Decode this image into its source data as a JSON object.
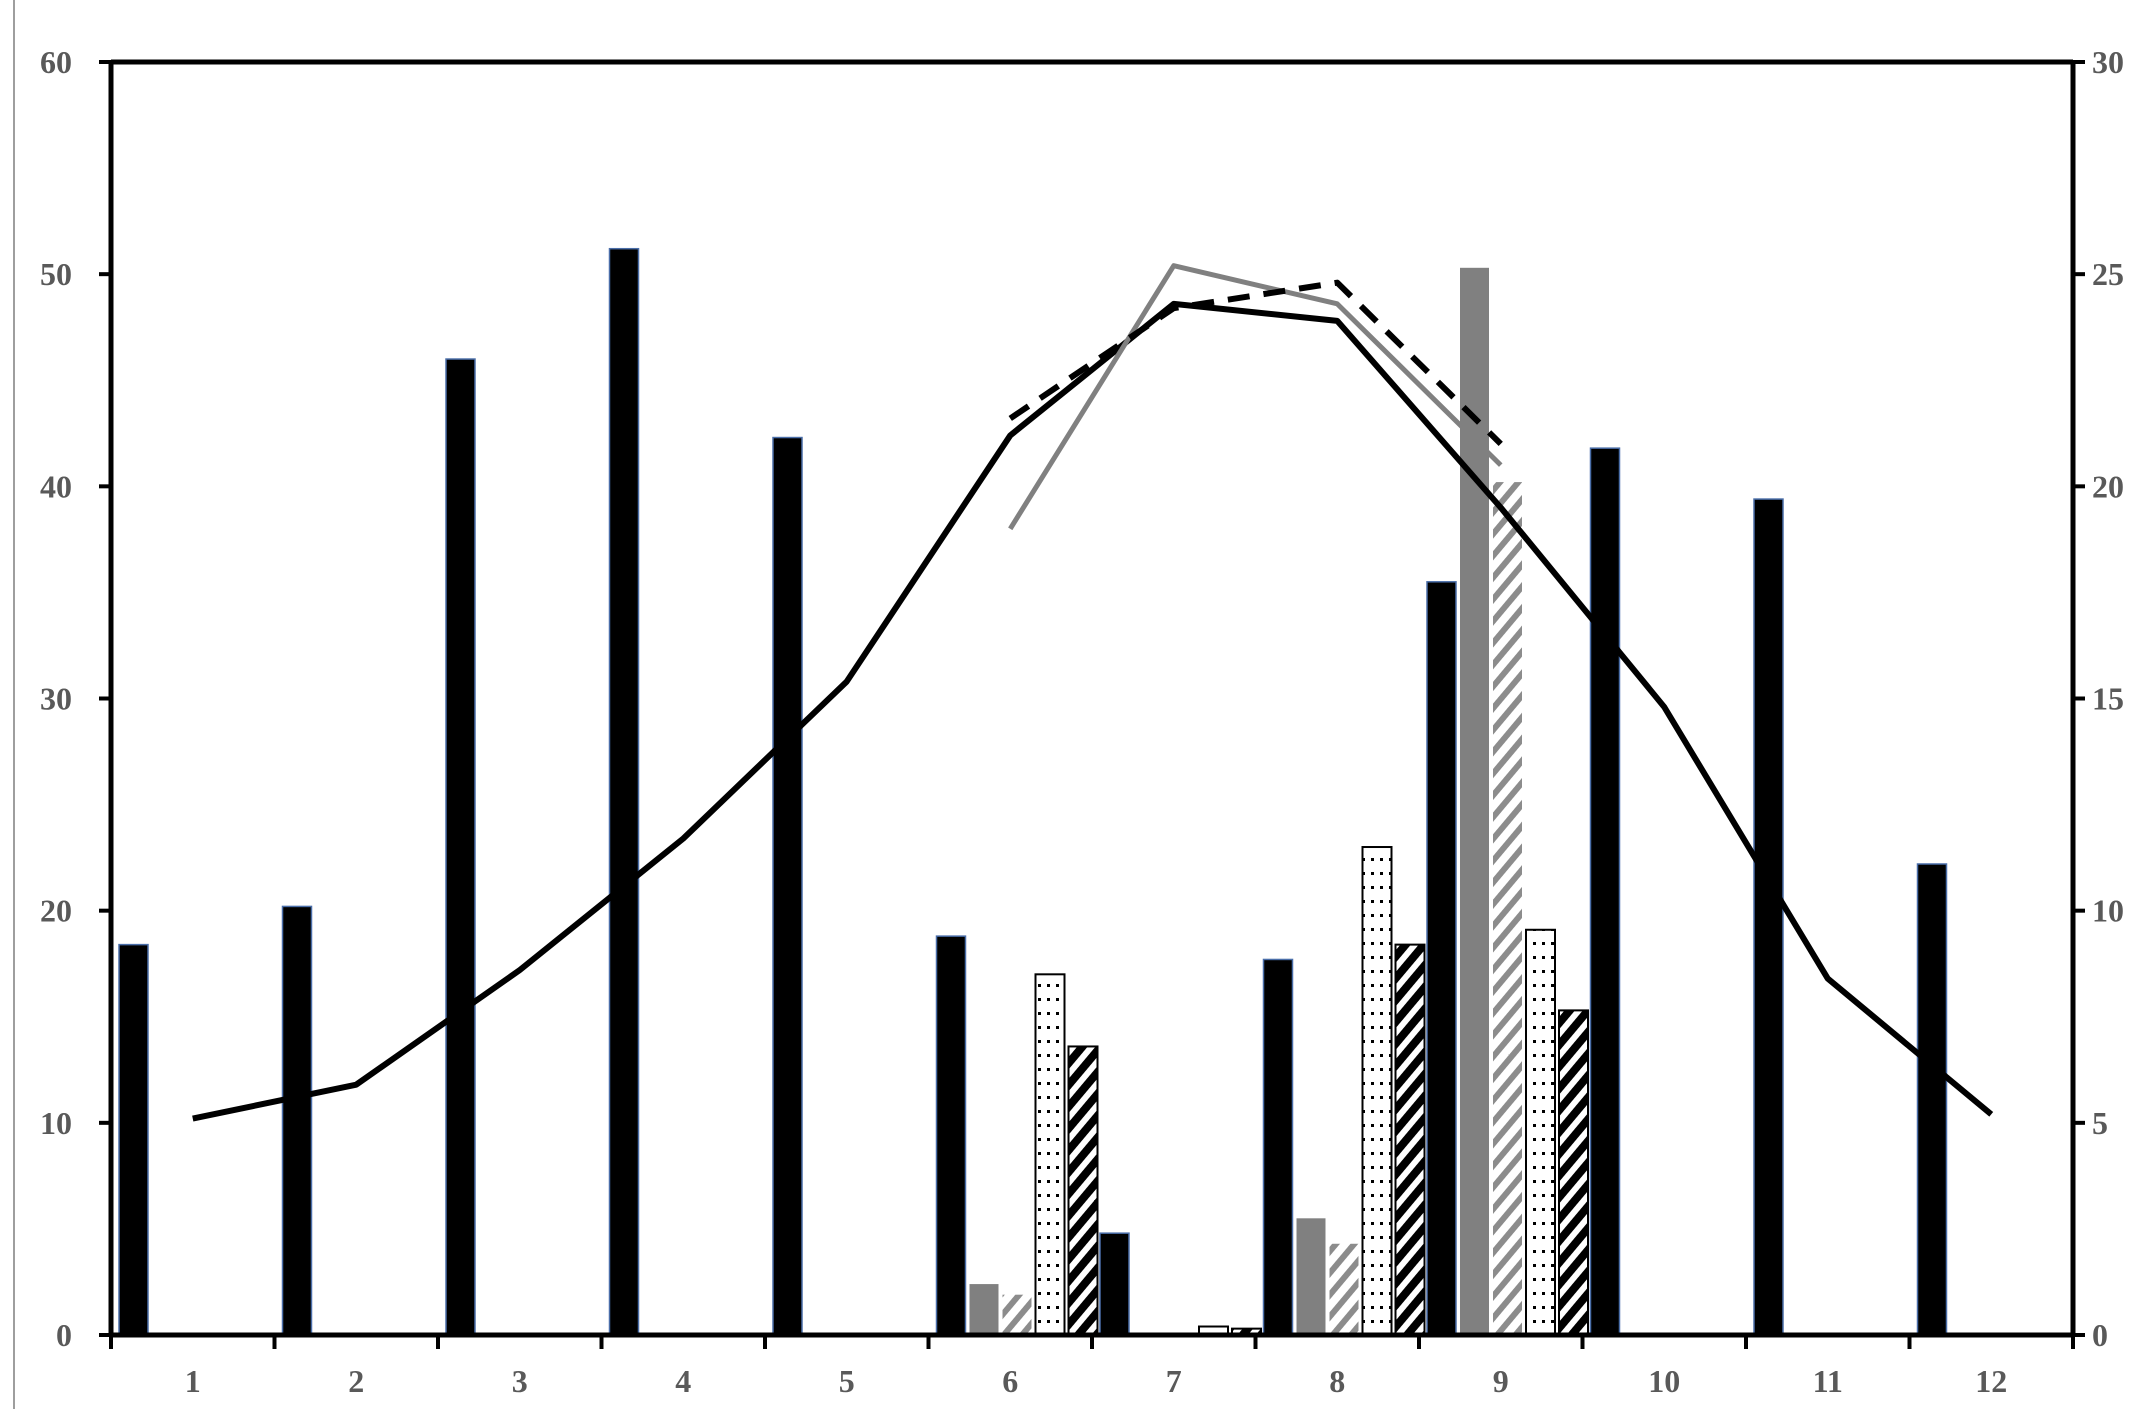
{
  "chart_data": {
    "type": "bar",
    "title": "",
    "xlabel": "",
    "ylabel": "",
    "y2label": "",
    "categories": [
      "1",
      "2",
      "3",
      "4",
      "5",
      "6",
      "7",
      "8",
      "9",
      "10",
      "11",
      "12"
    ],
    "ylim": [
      0,
      60
    ],
    "y2lim": [
      0,
      30
    ],
    "yticks": [
      "0",
      "10",
      "20",
      "30",
      "40",
      "50",
      "60"
    ],
    "y2ticks": [
      "0",
      "5",
      "10",
      "15",
      "20",
      "25",
      "30"
    ],
    "grid": false,
    "legend": "none",
    "bar_series": [
      {
        "values": [
          18.4,
          20.2,
          46.0,
          51.2,
          42.3,
          18.8,
          4.8,
          17.7,
          35.5,
          41.8,
          39.4,
          22.2
        ],
        "color": "#000000",
        "pattern": "solid"
      },
      {
        "values": [
          null,
          null,
          null,
          null,
          null,
          2.4,
          0.0,
          5.5,
          50.3,
          null,
          null,
          null
        ],
        "color": "#808080",
        "pattern": "solid"
      },
      {
        "values": [
          null,
          null,
          null,
          null,
          null,
          1.9,
          0.0,
          4.3,
          40.2,
          null,
          null,
          null
        ],
        "color": "#808080",
        "pattern": "diagonal-gray"
      },
      {
        "values": [
          null,
          null,
          null,
          null,
          null,
          17.0,
          0.4,
          23.0,
          19.1,
          null,
          null,
          null
        ],
        "color": "#000000",
        "pattern": "dots"
      },
      {
        "values": [
          null,
          null,
          null,
          null,
          null,
          13.6,
          0.3,
          18.4,
          15.3,
          null,
          null,
          null
        ],
        "color": "#000000",
        "pattern": "diagonal-black"
      }
    ],
    "line_series": [
      {
        "axis": "right",
        "color": "#000000",
        "dash": "solid",
        "values": [
          5.1,
          5.9,
          8.6,
          11.7,
          15.4,
          21.2,
          24.3,
          23.9,
          19.5,
          14.8,
          8.4,
          5.2
        ]
      },
      {
        "axis": "right",
        "color": "#808080",
        "dash": "solid",
        "values": [
          null,
          null,
          null,
          null,
          null,
          19.0,
          25.2,
          24.3,
          20.5,
          null,
          null,
          null
        ]
      },
      {
        "axis": "right",
        "color": "#000000",
        "dash": "dashed",
        "values": [
          null,
          null,
          null,
          null,
          null,
          21.6,
          24.2,
          24.8,
          21.0,
          null,
          null,
          null
        ]
      }
    ]
  }
}
